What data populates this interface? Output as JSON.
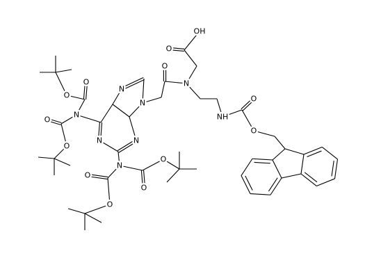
{
  "atoms": [
    {
      "label": "N"
    },
    {
      "label": "N"
    },
    {
      "label": "N"
    },
    {
      "label": "N"
    },
    {
      "label": "N"
    },
    {
      "label": "N"
    },
    {
      "label": "O"
    },
    {
      "label": "N"
    },
    {
      "label": "OH"
    },
    {
      "label": "O"
    },
    {
      "label": "NH"
    },
    {
      "label": "O"
    },
    {
      "label": "O"
    },
    {
      "label": "O"
    },
    {
      "label": "O"
    },
    {
      "label": "O"
    },
    {
      "label": "O"
    },
    {
      "label": "O"
    },
    {
      "label": "O"
    },
    {
      "label": "O"
    },
    {
      "label": "O"
    }
  ]
}
